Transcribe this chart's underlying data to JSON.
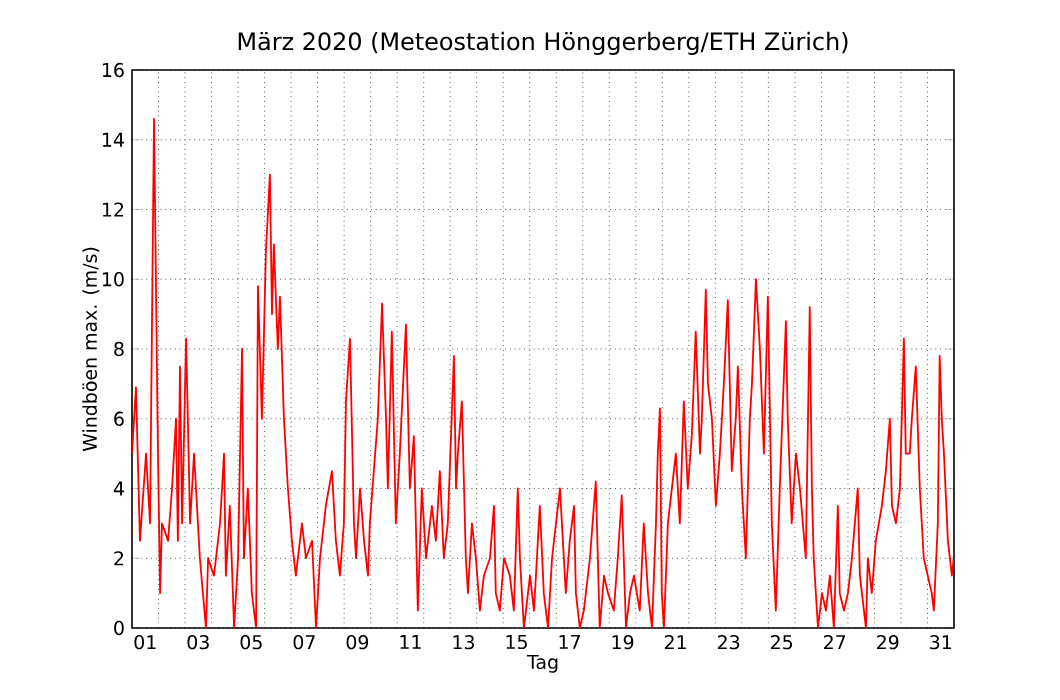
{
  "chart_data": {
    "type": "line",
    "title": "März 2020  (Meteostation Hönggerberg/ETH Zürich)",
    "xlabel": "Tag",
    "ylabel": "Windböen max. (m/s)",
    "xlim": [
      1,
      32
    ],
    "ylim": [
      0,
      16
    ],
    "xticks": [
      {
        "value": 1.5,
        "label": "01"
      },
      {
        "value": 3.5,
        "label": "03"
      },
      {
        "value": 5.5,
        "label": "05"
      },
      {
        "value": 7.5,
        "label": "07"
      },
      {
        "value": 9.5,
        "label": "09"
      },
      {
        "value": 11.5,
        "label": "11"
      },
      {
        "value": 13.5,
        "label": "13"
      },
      {
        "value": 15.5,
        "label": "15"
      },
      {
        "value": 17.5,
        "label": "17"
      },
      {
        "value": 19.5,
        "label": "19"
      },
      {
        "value": 21.5,
        "label": "21"
      },
      {
        "value": 23.5,
        "label": "23"
      },
      {
        "value": 25.5,
        "label": "25"
      },
      {
        "value": 27.5,
        "label": "27"
      },
      {
        "value": 29.5,
        "label": "29"
      },
      {
        "value": 31.5,
        "label": "31"
      },
      {
        "value": 2,
        "label": null
      },
      {
        "value": 3,
        "label": null
      },
      {
        "value": 4,
        "label": null
      },
      {
        "value": 5,
        "label": null
      },
      {
        "value": 6,
        "label": null
      },
      {
        "value": 7,
        "label": null
      },
      {
        "value": 8,
        "label": null
      },
      {
        "value": 9,
        "label": null
      },
      {
        "value": 10,
        "label": null
      },
      {
        "value": 11,
        "label": null
      },
      {
        "value": 12,
        "label": null
      },
      {
        "value": 13,
        "label": null
      },
      {
        "value": 14,
        "label": null
      },
      {
        "value": 15,
        "label": null
      },
      {
        "value": 16,
        "label": null
      },
      {
        "value": 17,
        "label": null
      },
      {
        "value": 18,
        "label": null
      },
      {
        "value": 19,
        "label": null
      },
      {
        "value": 20,
        "label": null
      },
      {
        "value": 21,
        "label": null
      },
      {
        "value": 22,
        "label": null
      },
      {
        "value": 23,
        "label": null
      },
      {
        "value": 24,
        "label": null
      },
      {
        "value": 25,
        "label": null
      },
      {
        "value": 26,
        "label": null
      },
      {
        "value": 27,
        "label": null
      },
      {
        "value": 28,
        "label": null
      },
      {
        "value": 29,
        "label": null
      },
      {
        "value": 30,
        "label": null
      },
      {
        "value": 31,
        "label": null
      }
    ],
    "yticks": [
      0,
      2,
      4,
      6,
      8,
      10,
      12,
      14,
      16
    ],
    "grid": true,
    "marker": "none",
    "line_style": "solid",
    "series": [
      {
        "color": "#ff0000",
        "x": [
          1.0,
          1.15,
          1.3,
          1.53,
          1.68,
          1.83,
          1.98,
          2.06,
          2.13,
          2.36,
          2.51,
          2.66,
          2.73,
          2.81,
          2.89,
          3.04,
          3.19,
          3.34,
          3.56,
          3.79,
          3.87,
          4.09,
          4.32,
          4.47,
          4.54,
          4.69,
          4.85,
          5.0,
          5.15,
          5.22,
          5.37,
          5.52,
          5.68,
          5.75,
          5.9,
          6.05,
          6.2,
          6.28,
          6.35,
          6.5,
          6.58,
          6.73,
          6.88,
          7.03,
          7.18,
          7.41,
          7.56,
          7.79,
          7.94,
          8.09,
          8.31,
          8.54,
          8.69,
          8.84,
          8.99,
          9.07,
          9.22,
          9.37,
          9.45,
          9.6,
          9.75,
          9.9,
          9.97,
          10.12,
          10.27,
          10.43,
          10.58,
          10.65,
          10.8,
          10.95,
          11.1,
          11.33,
          11.48,
          11.63,
          11.78,
          11.93,
          12.09,
          12.31,
          12.46,
          12.61,
          12.76,
          12.91,
          13.14,
          13.22,
          13.29,
          13.44,
          13.59,
          13.67,
          13.82,
          13.97,
          14.12,
          14.27,
          14.5,
          14.65,
          14.72,
          14.87,
          15.03,
          15.25,
          15.4,
          15.55,
          15.63,
          15.78,
          16.01,
          16.16,
          16.38,
          16.53,
          16.69,
          16.84,
          17.14,
          17.36,
          17.51,
          17.67,
          17.74,
          17.89,
          18.04,
          18.27,
          18.49,
          18.64,
          18.8,
          18.95,
          19.17,
          19.32,
          19.47,
          19.63,
          19.78,
          19.93,
          20.15,
          20.3,
          20.46,
          20.61,
          20.76,
          20.83,
          20.91,
          20.98,
          21.06,
          21.21,
          21.36,
          21.51,
          21.66,
          21.81,
          21.96,
          22.11,
          22.26,
          22.42,
          22.49,
          22.64,
          22.72,
          22.87,
          23.02,
          23.17,
          23.32,
          23.47,
          23.62,
          23.77,
          23.85,
          24.0,
          24.15,
          24.3,
          24.38,
          24.53,
          24.68,
          24.83,
          24.98,
          25.13,
          25.28,
          25.43,
          25.66,
          25.73,
          25.88,
          26.04,
          26.19,
          26.41,
          26.56,
          26.64,
          26.71,
          26.87,
          27.02,
          27.17,
          27.32,
          27.47,
          27.62,
          27.69,
          27.85,
          28.0,
          28.15,
          28.37,
          28.45,
          28.68,
          28.75,
          28.9,
          29.05,
          29.28,
          29.43,
          29.58,
          29.66,
          29.81,
          29.96,
          30.11,
          30.18,
          30.33,
          30.41,
          30.56,
          30.71,
          30.86,
          31.01,
          31.16,
          31.24,
          31.39,
          31.46,
          31.54,
          31.62,
          31.77,
          31.92,
          31.99
        ],
        "values": [
          5,
          6.9,
          2.5,
          5,
          3,
          14.6,
          5,
          1,
          3,
          2.5,
          4,
          6,
          2.5,
          7.5,
          3,
          8.3,
          3,
          5,
          2,
          0,
          2,
          1.5,
          3,
          5,
          1.5,
          3.5,
          0,
          2,
          8,
          2,
          4,
          1,
          0,
          9.8,
          6,
          10.8,
          13,
          9,
          11,
          8,
          9.5,
          6,
          4,
          2.5,
          1.5,
          3,
          2,
          2.5,
          0,
          2,
          3.5,
          4.5,
          2.5,
          1.5,
          3,
          6.5,
          8.3,
          3,
          2,
          4,
          2.5,
          1.5,
          3,
          4.5,
          6,
          9.3,
          6,
          4,
          8.5,
          3,
          5,
          8.7,
          4,
          5.5,
          0.5,
          4,
          2,
          3.5,
          2.5,
          4.5,
          2,
          3,
          7.8,
          4,
          5,
          6.5,
          2,
          1,
          3,
          2,
          0.5,
          1.5,
          2,
          3.5,
          1,
          0.5,
          2,
          1.5,
          0.5,
          4,
          2,
          0,
          1.5,
          0.5,
          3.5,
          1,
          0,
          2,
          4,
          1,
          2.5,
          3.5,
          1,
          0,
          0.5,
          2,
          4.2,
          0,
          1.5,
          1,
          0.5,
          2,
          3.8,
          0,
          1,
          1.5,
          0.5,
          3,
          1,
          0,
          3,
          5,
          6.3,
          1,
          0,
          3,
          4,
          5,
          3,
          6.5,
          4,
          5.5,
          8.5,
          5,
          6,
          9.7,
          7,
          6,
          3.5,
          5,
          7,
          9.4,
          4.5,
          6,
          7.5,
          4,
          2,
          6,
          7,
          10,
          8,
          5,
          9.5,
          3,
          0.5,
          4,
          8.8,
          6,
          3,
          5,
          4,
          2,
          9.2,
          4,
          2,
          0,
          1,
          0.5,
          1.5,
          0,
          3.5,
          1,
          0.5,
          1,
          2,
          4,
          1.5,
          0,
          2,
          1,
          2.5,
          3.5,
          4.5,
          6,
          3.5,
          3,
          4,
          8.3,
          5,
          5,
          6,
          7.5,
          4,
          2,
          1.5,
          1,
          0.5,
          3,
          7.8,
          6,
          5,
          2.5,
          1.5,
          2
        ]
      }
    ]
  }
}
